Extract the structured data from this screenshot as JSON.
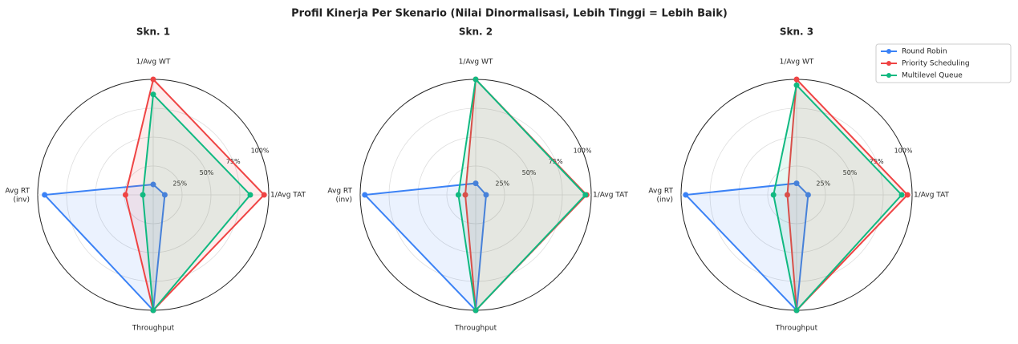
{
  "title": "Profil Kinerja Per Skenario (Nilai Dinormalisasi, Lebih Tinggi = Lebih Baik)",
  "chart_data": [
    {
      "type": "radar",
      "title": "Skn. 1",
      "categories": [
        "1/Avg WT",
        "1/Avg TAT",
        "Throughput",
        "Avg RT\n(inv)"
      ],
      "ylim": [
        0,
        100
      ],
      "yticks": [
        {
          "value": 25,
          "label": "25%"
        },
        {
          "value": 50,
          "label": "50%"
        },
        {
          "value": 75,
          "label": "75%"
        },
        {
          "value": 100,
          "label": "100%"
        }
      ],
      "series": [
        {
          "name": "Round Robin",
          "color": "#3b82f6",
          "values": [
            9,
            10,
            100,
            94
          ]
        },
        {
          "name": "Priority Scheduling",
          "color": "#ef4444",
          "values": [
            100,
            96,
            100,
            24
          ]
        },
        {
          "name": "Multilevel Queue",
          "color": "#10b981",
          "values": [
            87,
            84,
            100,
            9
          ]
        }
      ]
    },
    {
      "type": "radar",
      "title": "Skn. 2",
      "categories": [
        "1/Avg WT",
        "1/Avg TAT",
        "Throughput",
        "Avg RT\n(inv)"
      ],
      "ylim": [
        0,
        100
      ],
      "yticks": [
        {
          "value": 25,
          "label": "25%"
        },
        {
          "value": 50,
          "label": "50%"
        },
        {
          "value": 75,
          "label": "75%"
        },
        {
          "value": 100,
          "label": "100%"
        }
      ],
      "series": [
        {
          "name": "Round Robin",
          "color": "#3b82f6",
          "values": [
            10,
            9,
            100,
            96
          ]
        },
        {
          "name": "Priority Scheduling",
          "color": "#ef4444",
          "values": [
            100,
            96,
            100,
            9
          ]
        },
        {
          "name": "Multilevel Queue",
          "color": "#10b981",
          "values": [
            100,
            95,
            100,
            15
          ]
        }
      ]
    },
    {
      "type": "radar",
      "title": "Skn. 3",
      "categories": [
        "1/Avg WT",
        "1/Avg TAT",
        "Throughput",
        "Avg RT\n(inv)"
      ],
      "ylim": [
        0,
        100
      ],
      "yticks": [
        {
          "value": 25,
          "label": "25%"
        },
        {
          "value": 50,
          "label": "50%"
        },
        {
          "value": 75,
          "label": "75%"
        },
        {
          "value": 100,
          "label": "100%"
        }
      ],
      "series": [
        {
          "name": "Round Robin",
          "color": "#3b82f6",
          "values": [
            10,
            10,
            100,
            96
          ]
        },
        {
          "name": "Priority Scheduling",
          "color": "#ef4444",
          "values": [
            100,
            96,
            100,
            8
          ]
        },
        {
          "name": "Multilevel Queue",
          "color": "#10b981",
          "values": [
            95,
            91,
            100,
            20
          ]
        }
      ]
    }
  ]
}
